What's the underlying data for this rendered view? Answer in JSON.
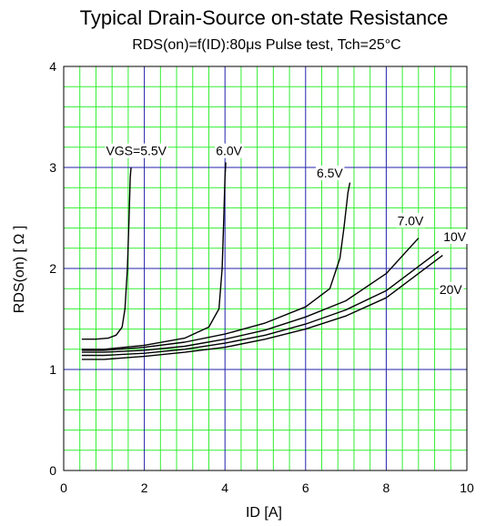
{
  "chart_data": {
    "type": "line",
    "title": "Typical Drain-Source on-state Resistance",
    "subtitle": "RDS(on)=f(ID):80μs Pulse test, Tch=25°C",
    "xlabel": "ID [A]",
    "ylabel": "RDS(on) [ Ω ]",
    "xlim": [
      0,
      10
    ],
    "ylim": [
      0,
      4
    ],
    "x_ticks": [
      "0",
      "2",
      "4",
      "6",
      "8",
      "10"
    ],
    "y_ticks": [
      "0",
      "1",
      "2",
      "3",
      "4"
    ],
    "grid": true,
    "colors": {
      "minor_grid": "#33ee33",
      "major_grid": "#2222aa",
      "curve": "#000000"
    },
    "series": [
      {
        "name": "VGS=5.5V",
        "x": [
          0.45,
          0.8,
          1.1,
          1.3,
          1.45,
          1.52,
          1.58,
          1.62,
          1.65,
          1.67
        ],
        "y": [
          1.3,
          1.3,
          1.31,
          1.34,
          1.42,
          1.6,
          2.0,
          2.5,
          2.9,
          3.0
        ]
      },
      {
        "name": "6.0V",
        "x": [
          0.45,
          1.0,
          2.0,
          3.0,
          3.6,
          3.85,
          3.93,
          3.97,
          4.0,
          4.02
        ],
        "y": [
          1.2,
          1.2,
          1.24,
          1.31,
          1.42,
          1.6,
          2.0,
          2.5,
          2.9,
          3.05
        ]
      },
      {
        "name": "6.5V",
        "x": [
          0.45,
          1.0,
          2.0,
          3.0,
          4.0,
          5.0,
          6.0,
          6.6,
          6.85,
          6.95,
          7.05,
          7.1
        ],
        "y": [
          1.19,
          1.19,
          1.22,
          1.27,
          1.35,
          1.46,
          1.62,
          1.8,
          2.1,
          2.4,
          2.75,
          2.85
        ]
      },
      {
        "name": "7.0V",
        "x": [
          0.45,
          1.0,
          2.0,
          3.0,
          4.0,
          5.0,
          6.0,
          7.0,
          8.0,
          8.8
        ],
        "y": [
          1.17,
          1.17,
          1.19,
          1.23,
          1.3,
          1.39,
          1.52,
          1.68,
          1.95,
          2.3
        ]
      },
      {
        "name": "10V",
        "x": [
          0.45,
          1.0,
          2.0,
          3.0,
          4.0,
          5.0,
          6.0,
          7.0,
          8.0,
          9.3
        ],
        "y": [
          1.14,
          1.14,
          1.16,
          1.2,
          1.26,
          1.34,
          1.45,
          1.59,
          1.78,
          2.17
        ]
      },
      {
        "name": "20V",
        "x": [
          0.45,
          1.0,
          2.0,
          3.0,
          4.0,
          5.0,
          6.0,
          7.0,
          8.0,
          9.4
        ],
        "y": [
          1.1,
          1.1,
          1.13,
          1.17,
          1.22,
          1.3,
          1.4,
          1.53,
          1.71,
          2.13
        ]
      }
    ],
    "series_labels": [
      {
        "text": "VGS=5.5V",
        "x": 1.8,
        "y": 3.12
      },
      {
        "text": "6.0V",
        "x": 4.1,
        "y": 3.12
      },
      {
        "text": "6.5V",
        "x": 6.6,
        "y": 2.9
      },
      {
        "text": "7.0V",
        "x": 8.6,
        "y": 2.43
      },
      {
        "text": "10V",
        "x": 9.7,
        "y": 2.27
      },
      {
        "text": "20V",
        "x": 9.6,
        "y": 1.75
      }
    ]
  }
}
